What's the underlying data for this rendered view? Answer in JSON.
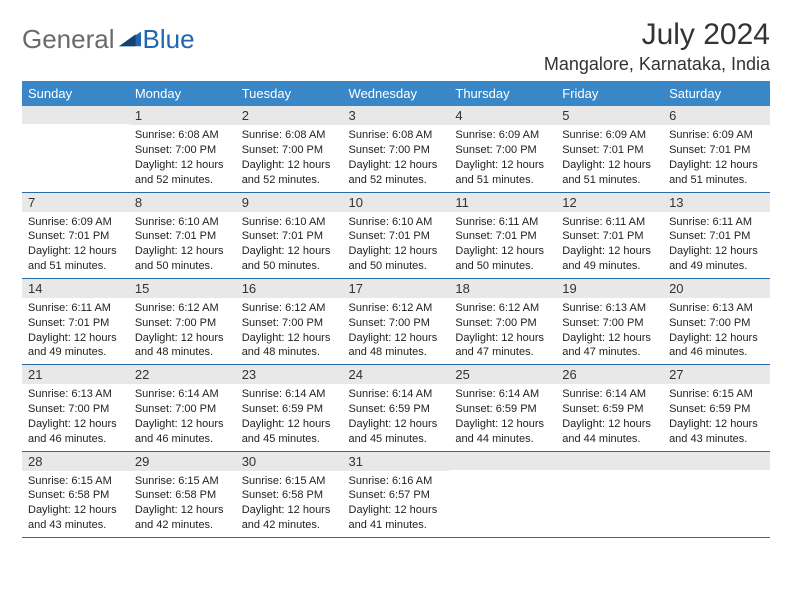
{
  "logo": {
    "text1": "General",
    "text2": "Blue"
  },
  "title": "July 2024",
  "location": "Mangalore, Karnataka, India",
  "colors": {
    "header_bg": "#3a87c7",
    "header_text": "#ffffff",
    "daynum_bg": "#e8e8e8",
    "row_border": "#2a6aa8",
    "logo_gray": "#6a6a6a",
    "logo_blue": "#2066b1",
    "text": "#222222",
    "background": "#ffffff"
  },
  "weekdays": [
    "Sunday",
    "Monday",
    "Tuesday",
    "Wednesday",
    "Thursday",
    "Friday",
    "Saturday"
  ],
  "grid": [
    [
      {
        "n": "",
        "l1": "",
        "l2": "",
        "l3": "",
        "l4": ""
      },
      {
        "n": "1",
        "l1": "Sunrise: 6:08 AM",
        "l2": "Sunset: 7:00 PM",
        "l3": "Daylight: 12 hours",
        "l4": "and 52 minutes."
      },
      {
        "n": "2",
        "l1": "Sunrise: 6:08 AM",
        "l2": "Sunset: 7:00 PM",
        "l3": "Daylight: 12 hours",
        "l4": "and 52 minutes."
      },
      {
        "n": "3",
        "l1": "Sunrise: 6:08 AM",
        "l2": "Sunset: 7:00 PM",
        "l3": "Daylight: 12 hours",
        "l4": "and 52 minutes."
      },
      {
        "n": "4",
        "l1": "Sunrise: 6:09 AM",
        "l2": "Sunset: 7:00 PM",
        "l3": "Daylight: 12 hours",
        "l4": "and 51 minutes."
      },
      {
        "n": "5",
        "l1": "Sunrise: 6:09 AM",
        "l2": "Sunset: 7:01 PM",
        "l3": "Daylight: 12 hours",
        "l4": "and 51 minutes."
      },
      {
        "n": "6",
        "l1": "Sunrise: 6:09 AM",
        "l2": "Sunset: 7:01 PM",
        "l3": "Daylight: 12 hours",
        "l4": "and 51 minutes."
      }
    ],
    [
      {
        "n": "7",
        "l1": "Sunrise: 6:09 AM",
        "l2": "Sunset: 7:01 PM",
        "l3": "Daylight: 12 hours",
        "l4": "and 51 minutes."
      },
      {
        "n": "8",
        "l1": "Sunrise: 6:10 AM",
        "l2": "Sunset: 7:01 PM",
        "l3": "Daylight: 12 hours",
        "l4": "and 50 minutes."
      },
      {
        "n": "9",
        "l1": "Sunrise: 6:10 AM",
        "l2": "Sunset: 7:01 PM",
        "l3": "Daylight: 12 hours",
        "l4": "and 50 minutes."
      },
      {
        "n": "10",
        "l1": "Sunrise: 6:10 AM",
        "l2": "Sunset: 7:01 PM",
        "l3": "Daylight: 12 hours",
        "l4": "and 50 minutes."
      },
      {
        "n": "11",
        "l1": "Sunrise: 6:11 AM",
        "l2": "Sunset: 7:01 PM",
        "l3": "Daylight: 12 hours",
        "l4": "and 50 minutes."
      },
      {
        "n": "12",
        "l1": "Sunrise: 6:11 AM",
        "l2": "Sunset: 7:01 PM",
        "l3": "Daylight: 12 hours",
        "l4": "and 49 minutes."
      },
      {
        "n": "13",
        "l1": "Sunrise: 6:11 AM",
        "l2": "Sunset: 7:01 PM",
        "l3": "Daylight: 12 hours",
        "l4": "and 49 minutes."
      }
    ],
    [
      {
        "n": "14",
        "l1": "Sunrise: 6:11 AM",
        "l2": "Sunset: 7:01 PM",
        "l3": "Daylight: 12 hours",
        "l4": "and 49 minutes."
      },
      {
        "n": "15",
        "l1": "Sunrise: 6:12 AM",
        "l2": "Sunset: 7:00 PM",
        "l3": "Daylight: 12 hours",
        "l4": "and 48 minutes."
      },
      {
        "n": "16",
        "l1": "Sunrise: 6:12 AM",
        "l2": "Sunset: 7:00 PM",
        "l3": "Daylight: 12 hours",
        "l4": "and 48 minutes."
      },
      {
        "n": "17",
        "l1": "Sunrise: 6:12 AM",
        "l2": "Sunset: 7:00 PM",
        "l3": "Daylight: 12 hours",
        "l4": "and 48 minutes."
      },
      {
        "n": "18",
        "l1": "Sunrise: 6:12 AM",
        "l2": "Sunset: 7:00 PM",
        "l3": "Daylight: 12 hours",
        "l4": "and 47 minutes."
      },
      {
        "n": "19",
        "l1": "Sunrise: 6:13 AM",
        "l2": "Sunset: 7:00 PM",
        "l3": "Daylight: 12 hours",
        "l4": "and 47 minutes."
      },
      {
        "n": "20",
        "l1": "Sunrise: 6:13 AM",
        "l2": "Sunset: 7:00 PM",
        "l3": "Daylight: 12 hours",
        "l4": "and 46 minutes."
      }
    ],
    [
      {
        "n": "21",
        "l1": "Sunrise: 6:13 AM",
        "l2": "Sunset: 7:00 PM",
        "l3": "Daylight: 12 hours",
        "l4": "and 46 minutes."
      },
      {
        "n": "22",
        "l1": "Sunrise: 6:14 AM",
        "l2": "Sunset: 7:00 PM",
        "l3": "Daylight: 12 hours",
        "l4": "and 46 minutes."
      },
      {
        "n": "23",
        "l1": "Sunrise: 6:14 AM",
        "l2": "Sunset: 6:59 PM",
        "l3": "Daylight: 12 hours",
        "l4": "and 45 minutes."
      },
      {
        "n": "24",
        "l1": "Sunrise: 6:14 AM",
        "l2": "Sunset: 6:59 PM",
        "l3": "Daylight: 12 hours",
        "l4": "and 45 minutes."
      },
      {
        "n": "25",
        "l1": "Sunrise: 6:14 AM",
        "l2": "Sunset: 6:59 PM",
        "l3": "Daylight: 12 hours",
        "l4": "and 44 minutes."
      },
      {
        "n": "26",
        "l1": "Sunrise: 6:14 AM",
        "l2": "Sunset: 6:59 PM",
        "l3": "Daylight: 12 hours",
        "l4": "and 44 minutes."
      },
      {
        "n": "27",
        "l1": "Sunrise: 6:15 AM",
        "l2": "Sunset: 6:59 PM",
        "l3": "Daylight: 12 hours",
        "l4": "and 43 minutes."
      }
    ],
    [
      {
        "n": "28",
        "l1": "Sunrise: 6:15 AM",
        "l2": "Sunset: 6:58 PM",
        "l3": "Daylight: 12 hours",
        "l4": "and 43 minutes."
      },
      {
        "n": "29",
        "l1": "Sunrise: 6:15 AM",
        "l2": "Sunset: 6:58 PM",
        "l3": "Daylight: 12 hours",
        "l4": "and 42 minutes."
      },
      {
        "n": "30",
        "l1": "Sunrise: 6:15 AM",
        "l2": "Sunset: 6:58 PM",
        "l3": "Daylight: 12 hours",
        "l4": "and 42 minutes."
      },
      {
        "n": "31",
        "l1": "Sunrise: 6:16 AM",
        "l2": "Sunset: 6:57 PM",
        "l3": "Daylight: 12 hours",
        "l4": "and 41 minutes."
      },
      {
        "n": "",
        "l1": "",
        "l2": "",
        "l3": "",
        "l4": ""
      },
      {
        "n": "",
        "l1": "",
        "l2": "",
        "l3": "",
        "l4": ""
      },
      {
        "n": "",
        "l1": "",
        "l2": "",
        "l3": "",
        "l4": ""
      }
    ]
  ]
}
